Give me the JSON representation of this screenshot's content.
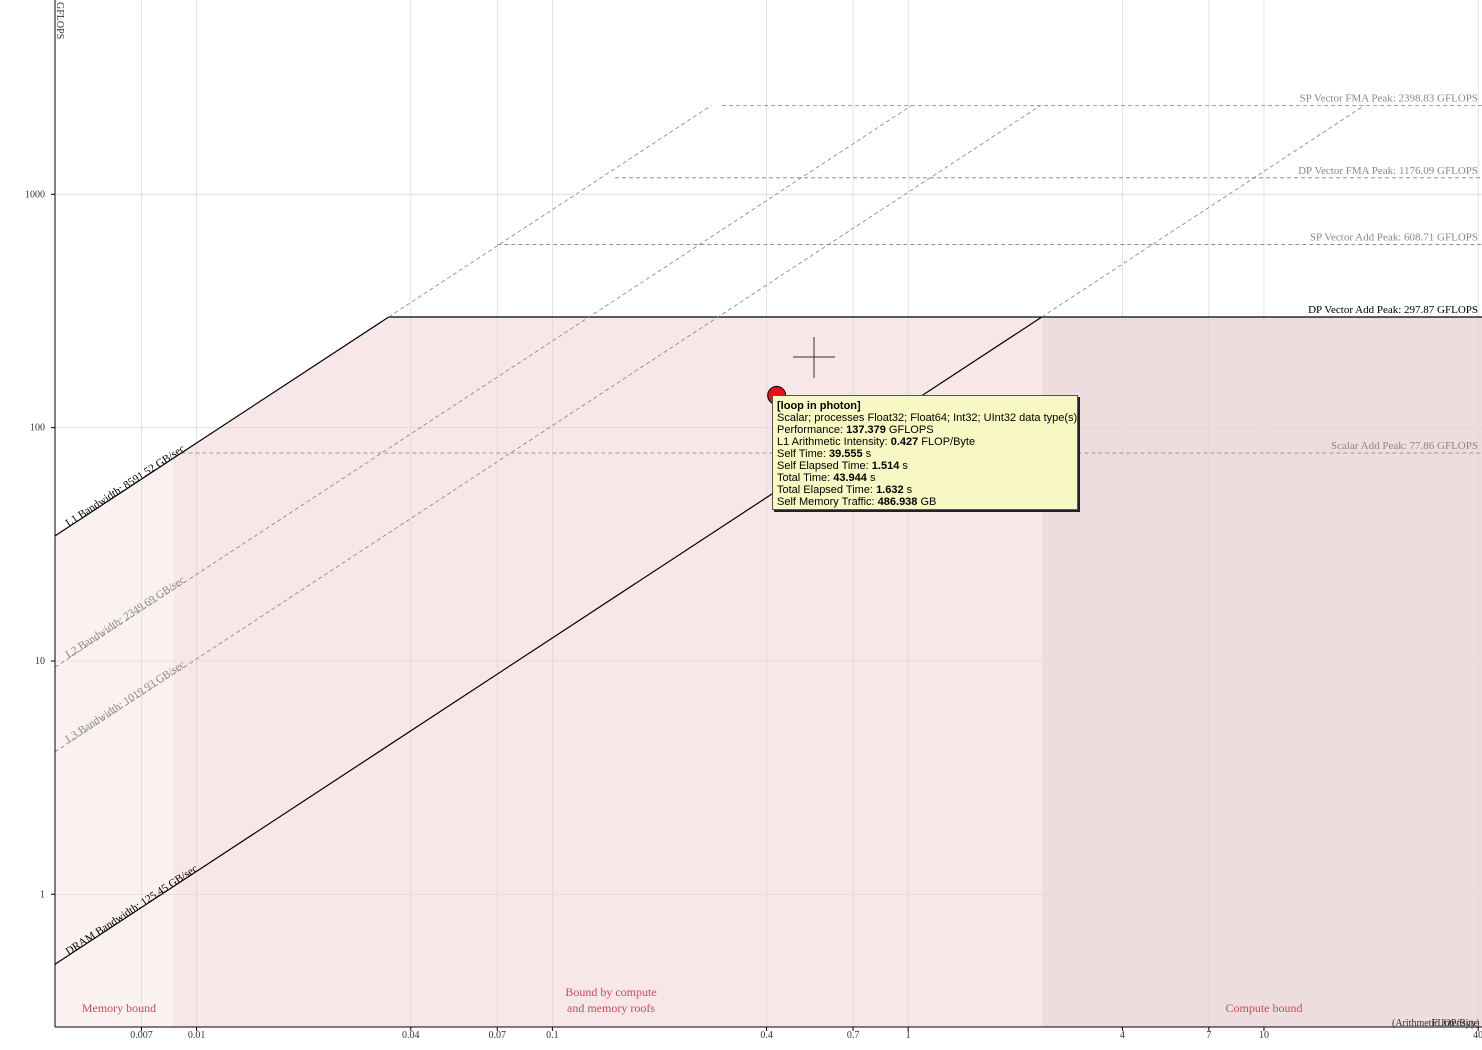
{
  "chart_data": {
    "type": "scatter",
    "scale": "log-log",
    "ylabel": "GFLOPS",
    "xlabel": "(Arithmetic Intensity)",
    "xlabel_unit": "FLOP/Byte",
    "xlim": [
      0.004,
      41
    ],
    "ylim": [
      0.27,
      6800
    ],
    "x_ticks": [
      {
        "v": 0.007,
        "label": "0.007"
      },
      {
        "v": 0.01,
        "label": "0.01"
      },
      {
        "v": 0.04,
        "label": "0.04"
      },
      {
        "v": 0.07,
        "label": "0.07"
      },
      {
        "v": 0.1,
        "label": "0.1"
      },
      {
        "v": 0.4,
        "label": "0.4"
      },
      {
        "v": 0.7,
        "label": "0.7"
      },
      {
        "v": 1,
        "label": "1"
      },
      {
        "v": 4,
        "label": "4"
      },
      {
        "v": 7,
        "label": "7"
      },
      {
        "v": 10,
        "label": "10"
      },
      {
        "v": 40,
        "label": "40"
      }
    ],
    "y_ticks": [
      {
        "v": 1,
        "label": "1"
      },
      {
        "v": 10,
        "label": "10"
      },
      {
        "v": 100,
        "label": "100"
      },
      {
        "v": 1000,
        "label": "1000"
      }
    ],
    "bandwidth_roofs": [
      {
        "name": "L1 Bandwidth: 8591.52 GB/sec",
        "gbps": 8591.52,
        "style": "solid"
      },
      {
        "name": "L2 Bandwidth: 2349.69 GB/sec",
        "gbps": 2349.69,
        "style": "dashed"
      },
      {
        "name": "L3 Bandwidth: 1019.93 GB/sec",
        "gbps": 1019.93,
        "style": "dashed"
      },
      {
        "name": "DRAM Bandwidth: 125.45 GB/sec",
        "gbps": 125.45,
        "style": "solid"
      }
    ],
    "compute_roofs": [
      {
        "name": "SP Vector FMA Peak: 2398.83 GFLOPS",
        "gflops": 2398.83,
        "style": "dashed"
      },
      {
        "name": "DP Vector FMA Peak: 1176.09 GFLOPS",
        "gflops": 1176.09,
        "style": "dashed"
      },
      {
        "name": "SP Vector Add Peak: 608.71 GFLOPS",
        "gflops": 608.71,
        "style": "dashed"
      },
      {
        "name": "DP Vector Add Peak: 297.87 GFLOPS",
        "gflops": 297.87,
        "style": "solid"
      },
      {
        "name": "Scalar Add Peak: 77.86 GFLOPS",
        "gflops": 77.86,
        "style": "dashed"
      }
    ],
    "regions": [
      {
        "label": [
          "Memory bound"
        ]
      },
      {
        "label": [
          "Bound by compute",
          "and memory roofs"
        ]
      },
      {
        "label": [
          "Compute bound"
        ]
      }
    ],
    "points": [
      {
        "name": "loop in photon",
        "x": 0.427,
        "y": 137.379,
        "color": "#e8101a"
      }
    ]
  },
  "tooltip": {
    "title": "[loop in photon]",
    "desc": "Scalar; processes Float32; Float64; Int32; UInt32 data type(s)",
    "rows": [
      {
        "label": "Performance:",
        "value": "137.379",
        "unit": "GFLOPS"
      },
      {
        "label": "L1 Arithmetic Intensity:",
        "value": "0.427",
        "unit": "FLOP/Byte"
      },
      {
        "label": "Self Time:",
        "value": "39.555",
        "unit": "s"
      },
      {
        "label": "Self Elapsed Time:",
        "value": "1.514",
        "unit": "s"
      },
      {
        "label": "Total Time:",
        "value": "43.944",
        "unit": "s"
      },
      {
        "label": "Total Elapsed Time:",
        "value": "1.632",
        "unit": "s"
      },
      {
        "label": "Self Memory Traffic:",
        "value": "486.938",
        "unit": "GB"
      }
    ]
  },
  "colors": {
    "region_memory": "#fbf1f1",
    "region_mixed": "#f7e7e8",
    "region_compute": "#eedddf",
    "region_label": "#c0505a",
    "grid": "#d8d8d8",
    "dashed_roof": "#808080",
    "solid_roof": "#000000"
  }
}
